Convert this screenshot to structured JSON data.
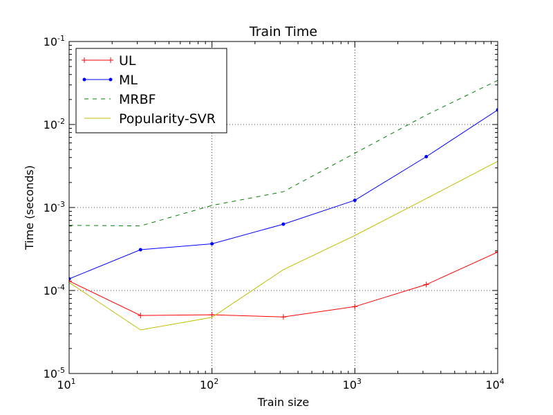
{
  "chart_data": {
    "type": "line",
    "title": "Train Time",
    "xlabel": "Train size",
    "ylabel": "Time (seconds)",
    "xscale": "log",
    "yscale": "log",
    "xlim": [
      10,
      10000
    ],
    "ylim": [
      1e-05,
      0.1
    ],
    "grid": true,
    "legend_position": "top-left",
    "xticks": [
      {
        "value": 10,
        "base": "10",
        "exp": "1"
      },
      {
        "value": 100,
        "base": "10",
        "exp": "2"
      },
      {
        "value": 1000,
        "base": "10",
        "exp": "3"
      },
      {
        "value": 10000,
        "base": "10",
        "exp": "4"
      }
    ],
    "yticks": [
      {
        "value": 1e-05,
        "base": "10",
        "exp": "-5"
      },
      {
        "value": 0.0001,
        "base": "10",
        "exp": "-4"
      },
      {
        "value": 0.001,
        "base": "10",
        "exp": "-3"
      },
      {
        "value": 0.01,
        "base": "10",
        "exp": "-2"
      },
      {
        "value": 0.1,
        "base": "10",
        "exp": "-1"
      }
    ],
    "x": [
      10,
      31.6,
      100,
      316,
      1000,
      3162,
      10000
    ],
    "series": [
      {
        "name": "UL",
        "color": "#ff0000",
        "style": "solid",
        "marker": "plus",
        "values": [
          0.00013,
          5e-05,
          5.1e-05,
          4.8e-05,
          6.4e-05,
          0.000118,
          0.00029
        ]
      },
      {
        "name": "ML",
        "color": "#0000ff",
        "style": "solid",
        "marker": "dot",
        "values": [
          0.000138,
          0.00031,
          0.000365,
          0.00063,
          0.00122,
          0.0041,
          0.015
        ]
      },
      {
        "name": "MRBF",
        "color": "#008000",
        "style": "dashed",
        "marker": "none",
        "values": [
          0.00061,
          0.0006,
          0.00106,
          0.00155,
          0.0045,
          0.013,
          0.034
        ]
      },
      {
        "name": "Popularity-SVR",
        "color": "#bfbf00",
        "style": "solid",
        "marker": "none",
        "values": [
          0.000125,
          3.35e-05,
          4.75e-05,
          0.000178,
          0.00046,
          0.00128,
          0.0036
        ]
      }
    ]
  }
}
